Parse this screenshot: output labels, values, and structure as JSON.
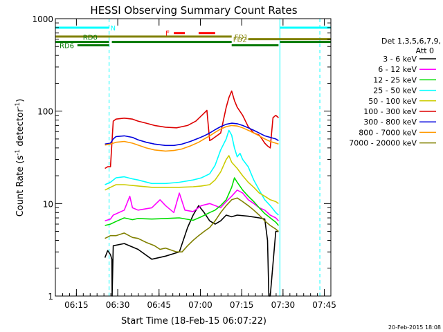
{
  "chart_data": {
    "type": "line",
    "title": "HESSI Observing Summary Count Rates",
    "xlabel": "Start Time (18-Feb-15 06:07:22)",
    "ylabel_main": "Count Rate (s",
    "ylabel_sup1": "-1",
    "ylabel_mid": " detector",
    "ylabel_sup2": "-1",
    "ylabel_end": ")",
    "x_unit": "minutes after 06:07:22",
    "xlim": [
      0,
      100
    ],
    "ylim": [
      1,
      1000
    ],
    "y_scale": "log",
    "x_ticks": [
      {
        "label": "06:15",
        "value": 7.63
      },
      {
        "label": "06:30",
        "value": 22.63
      },
      {
        "label": "06:45",
        "value": 37.63
      },
      {
        "label": "07:00",
        "value": 52.63
      },
      {
        "label": "07:15",
        "value": 67.63
      },
      {
        "label": "07:30",
        "value": 82.63
      },
      {
        "label": "07:45",
        "value": 97.63
      }
    ],
    "y_ticks": [
      {
        "label": "1",
        "value": 1
      },
      {
        "label": "10",
        "value": 10
      },
      {
        "label": "100",
        "value": 100
      },
      {
        "label": "1000",
        "value": 1000
      }
    ],
    "legend": {
      "placement": "right",
      "header_line1": "Det 1,3,5,6,7,9,",
      "header_line2": "Att 0",
      "entries": [
        {
          "label": "3 - 6 keV",
          "color": "#000000"
        },
        {
          "label": "6 - 12 keV",
          "color": "#ff00ff"
        },
        {
          "label": "12 - 25 keV",
          "color": "#00dd00"
        },
        {
          "label": "25 - 50 keV",
          "color": "#00ffff"
        },
        {
          "label": "50 - 100 keV",
          "color": "#cccc00"
        },
        {
          "label": "100 - 300 keV",
          "color": "#dd0000"
        },
        {
          "label": "300 - 800 keV",
          "color": "#0000dd"
        },
        {
          "label": "800 - 7000 keV",
          "color": "#ff9900"
        },
        {
          "label": "7000 - 20000 keV",
          "color": "#808000"
        }
      ]
    },
    "series": [
      {
        "name": "3 - 6 keV",
        "color": "#000000",
        "points": [
          [
            18,
            2.6
          ],
          [
            19,
            3.1
          ],
          [
            20,
            2.8
          ],
          [
            20.5,
            2.5
          ],
          [
            20.6,
            1.0
          ],
          [
            21,
            3.5
          ],
          [
            25,
            3.7
          ],
          [
            30,
            3.2
          ],
          [
            35,
            2.5
          ],
          [
            40,
            2.7
          ],
          [
            45,
            3.0
          ],
          [
            48,
            5.5
          ],
          [
            50,
            7.5
          ],
          [
            52,
            9.5
          ],
          [
            54,
            8.0
          ],
          [
            56,
            6.5
          ],
          [
            58,
            6.0
          ],
          [
            60,
            6.5
          ],
          [
            62,
            7.5
          ],
          [
            64,
            7.2
          ],
          [
            66,
            7.5
          ],
          [
            70,
            7.3
          ],
          [
            74,
            7.0
          ],
          [
            76,
            6.8
          ],
          [
            77,
            4.0
          ],
          [
            77.5,
            1.0
          ],
          [
            78,
            1.0
          ],
          [
            80,
            5.0
          ],
          [
            81,
            5.0
          ]
        ]
      },
      {
        "name": "6 - 12 keV",
        "color": "#ff00ff",
        "points": [
          [
            18,
            6.5
          ],
          [
            20,
            6.8
          ],
          [
            21,
            7.5
          ],
          [
            25,
            8.5
          ],
          [
            27,
            12
          ],
          [
            28,
            9
          ],
          [
            30,
            8.5
          ],
          [
            35,
            9.0
          ],
          [
            38,
            11
          ],
          [
            40,
            9.5
          ],
          [
            43,
            8.0
          ],
          [
            45,
            13
          ],
          [
            47,
            8.5
          ],
          [
            50,
            8.2
          ],
          [
            53,
            9.5
          ],
          [
            56,
            10
          ],
          [
            58,
            9.5
          ],
          [
            60,
            9.0
          ],
          [
            62,
            10.5
          ],
          [
            64,
            12
          ],
          [
            66,
            14
          ],
          [
            68,
            13
          ],
          [
            70,
            11
          ],
          [
            72,
            10
          ],
          [
            74,
            9.0
          ],
          [
            76,
            8.5
          ],
          [
            78,
            7.5
          ],
          [
            80,
            7.0
          ],
          [
            81,
            6.5
          ]
        ]
      },
      {
        "name": "12 - 25 keV",
        "color": "#00dd00",
        "points": [
          [
            18,
            5.8
          ],
          [
            20,
            6.0
          ],
          [
            22,
            6.4
          ],
          [
            25,
            7.0
          ],
          [
            28,
            6.7
          ],
          [
            30,
            6.9
          ],
          [
            35,
            6.8
          ],
          [
            40,
            6.9
          ],
          [
            45,
            7.0
          ],
          [
            50,
            6.6
          ],
          [
            53,
            7.2
          ],
          [
            56,
            8.0
          ],
          [
            58,
            8.5
          ],
          [
            60,
            9.5
          ],
          [
            62,
            11
          ],
          [
            64,
            15
          ],
          [
            65,
            19
          ],
          [
            66,
            17
          ],
          [
            68,
            14
          ],
          [
            70,
            12
          ],
          [
            72,
            10.5
          ],
          [
            74,
            9.0
          ],
          [
            76,
            7.8
          ],
          [
            78,
            7.0
          ],
          [
            80,
            6.3
          ],
          [
            81,
            5.8
          ]
        ]
      },
      {
        "name": "25 - 50 keV",
        "color": "#00ffff",
        "points": [
          [
            18,
            16
          ],
          [
            20,
            17
          ],
          [
            22,
            19
          ],
          [
            25,
            19.5
          ],
          [
            28,
            18.5
          ],
          [
            30,
            18
          ],
          [
            35,
            16.5
          ],
          [
            40,
            16.5
          ],
          [
            45,
            17
          ],
          [
            50,
            18
          ],
          [
            53,
            19
          ],
          [
            56,
            21
          ],
          [
            58,
            26
          ],
          [
            60,
            38
          ],
          [
            62,
            50
          ],
          [
            63,
            62
          ],
          [
            64,
            55
          ],
          [
            65,
            40
          ],
          [
            66,
            32
          ],
          [
            67,
            35
          ],
          [
            68,
            30
          ],
          [
            70,
            25
          ],
          [
            72,
            18
          ],
          [
            74,
            14
          ],
          [
            76,
            11
          ],
          [
            78,
            9.5
          ],
          [
            80,
            8.0
          ],
          [
            81,
            7.5
          ]
        ]
      },
      {
        "name": "50 - 100 keV",
        "color": "#cccc00",
        "points": [
          [
            18,
            14
          ],
          [
            20,
            15
          ],
          [
            22,
            16
          ],
          [
            25,
            16
          ],
          [
            30,
            15.5
          ],
          [
            35,
            15
          ],
          [
            40,
            15
          ],
          [
            45,
            15
          ],
          [
            50,
            15.2
          ],
          [
            53,
            15.5
          ],
          [
            56,
            16
          ],
          [
            58,
            18
          ],
          [
            60,
            22
          ],
          [
            62,
            30
          ],
          [
            63,
            33
          ],
          [
            64,
            28
          ],
          [
            66,
            24
          ],
          [
            68,
            20
          ],
          [
            70,
            17
          ],
          [
            72,
            15
          ],
          [
            74,
            13
          ],
          [
            76,
            12
          ],
          [
            78,
            11
          ],
          [
            80,
            10.5
          ],
          [
            81,
            10
          ]
        ]
      },
      {
        "name": "100 - 300 keV",
        "color": "#dd0000",
        "points": [
          [
            18,
            24
          ],
          [
            19,
            25
          ],
          [
            20,
            25
          ],
          [
            21,
            78
          ],
          [
            22,
            82
          ],
          [
            25,
            84
          ],
          [
            28,
            82
          ],
          [
            30,
            78
          ],
          [
            33,
            74
          ],
          [
            36,
            70
          ],
          [
            40,
            67
          ],
          [
            44,
            66
          ],
          [
            48,
            70
          ],
          [
            51,
            78
          ],
          [
            54,
            95
          ],
          [
            55,
            102
          ],
          [
            56,
            48
          ],
          [
            57,
            50
          ],
          [
            60,
            58
          ],
          [
            62,
            110
          ],
          [
            63,
            140
          ],
          [
            64,
            165
          ],
          [
            65,
            130
          ],
          [
            66,
            110
          ],
          [
            68,
            90
          ],
          [
            70,
            68
          ],
          [
            72,
            58
          ],
          [
            74,
            55
          ],
          [
            75,
            50
          ],
          [
            76,
            45
          ],
          [
            77,
            42
          ],
          [
            78,
            40
          ],
          [
            79,
            85
          ],
          [
            80,
            90
          ],
          [
            81,
            85
          ]
        ]
      },
      {
        "name": "300 - 800 keV",
        "color": "#0000dd",
        "points": [
          [
            18,
            44
          ],
          [
            20,
            45
          ],
          [
            21,
            50
          ],
          [
            22,
            53
          ],
          [
            25,
            54
          ],
          [
            28,
            52
          ],
          [
            30,
            49
          ],
          [
            33,
            46
          ],
          [
            36,
            44
          ],
          [
            40,
            42.5
          ],
          [
            43,
            42.5
          ],
          [
            46,
            44
          ],
          [
            49,
            47
          ],
          [
            52,
            51
          ],
          [
            54,
            54
          ],
          [
            56,
            58
          ],
          [
            58,
            63
          ],
          [
            60,
            68
          ],
          [
            62,
            72
          ],
          [
            64,
            74
          ],
          [
            66,
            73
          ],
          [
            68,
            70
          ],
          [
            70,
            66
          ],
          [
            72,
            62
          ],
          [
            74,
            58
          ],
          [
            76,
            54
          ],
          [
            78,
            52
          ],
          [
            80,
            50
          ],
          [
            81,
            48
          ]
        ]
      },
      {
        "name": "800 - 7000 keV",
        "color": "#ff9900",
        "points": [
          [
            18,
            43
          ],
          [
            20,
            44
          ],
          [
            22,
            46
          ],
          [
            25,
            47
          ],
          [
            28,
            45
          ],
          [
            30,
            43
          ],
          [
            33,
            40
          ],
          [
            36,
            38
          ],
          [
            40,
            37
          ],
          [
            43,
            37.5
          ],
          [
            46,
            39
          ],
          [
            49,
            42
          ],
          [
            52,
            46
          ],
          [
            54,
            50
          ],
          [
            56,
            54
          ],
          [
            58,
            59
          ],
          [
            60,
            64
          ],
          [
            62,
            68
          ],
          [
            64,
            70
          ],
          [
            66,
            69
          ],
          [
            68,
            66
          ],
          [
            70,
            62
          ],
          [
            72,
            58
          ],
          [
            74,
            54
          ],
          [
            76,
            50
          ],
          [
            78,
            47
          ],
          [
            80,
            45
          ],
          [
            81,
            44
          ]
        ]
      },
      {
        "name": "7000 - 20000 keV",
        "color": "#808000",
        "points": [
          [
            18,
            4.2
          ],
          [
            20,
            4.5
          ],
          [
            22,
            4.5
          ],
          [
            25,
            4.8
          ],
          [
            28,
            4.3
          ],
          [
            30,
            4.2
          ],
          [
            33,
            3.8
          ],
          [
            36,
            3.5
          ],
          [
            38,
            3.2
          ],
          [
            40,
            3.3
          ],
          [
            44,
            3.0
          ],
          [
            46,
            3.0
          ],
          [
            48,
            3.5
          ],
          [
            50,
            4.0
          ],
          [
            52,
            4.5
          ],
          [
            54,
            5.0
          ],
          [
            56,
            5.5
          ],
          [
            58,
            6.5
          ],
          [
            60,
            8.0
          ],
          [
            62,
            9.5
          ],
          [
            64,
            11
          ],
          [
            66,
            11.5
          ],
          [
            68,
            10.5
          ],
          [
            70,
            9.5
          ],
          [
            72,
            8.5
          ],
          [
            74,
            7.5
          ],
          [
            76,
            6.5
          ],
          [
            78,
            5.8
          ],
          [
            80,
            5.3
          ],
          [
            81,
            5.0
          ]
        ]
      }
    ],
    "flag_bars": [
      {
        "label": "N",
        "color": "#00ffff",
        "segments": [
          [
            0,
            19.5
          ],
          [
            81.5,
            100
          ]
        ],
        "y": 800
      },
      {
        "label": "F",
        "color": "#ff0000",
        "segments": [
          [
            43,
            47
          ],
          [
            52,
            58
          ]
        ],
        "y": 700
      },
      {
        "label": "FD1",
        "color": "#808000",
        "segments": [
          [
            0,
            64
          ]
        ],
        "y": 640
      },
      {
        "label": "FD2",
        "color": "#808000",
        "segments": [
          [
            70,
            100
          ]
        ],
        "y": 600
      },
      {
        "label": "RD0",
        "color": "#007700",
        "segments": [
          [
            0,
            19.5
          ],
          [
            20.5,
            64
          ],
          [
            81.5,
            100
          ]
        ],
        "y": 560
      },
      {
        "label": "RD6",
        "color": "#007700",
        "segments": [
          [
            8,
            19.5
          ],
          [
            64,
            81
          ]
        ],
        "y": 515
      }
    ],
    "vertical_markers": [
      {
        "x": 19.5,
        "style": "dashed",
        "color": "#00ffff"
      },
      {
        "x": 81.5,
        "style": "solid",
        "color": "#00ffff"
      },
      {
        "x": 96,
        "style": "dashed",
        "color": "#00ffff"
      },
      {
        "x": 0,
        "style": "solid",
        "color": "#00ffff"
      }
    ],
    "footer_timestamp": "20-Feb-2015 18:08"
  }
}
